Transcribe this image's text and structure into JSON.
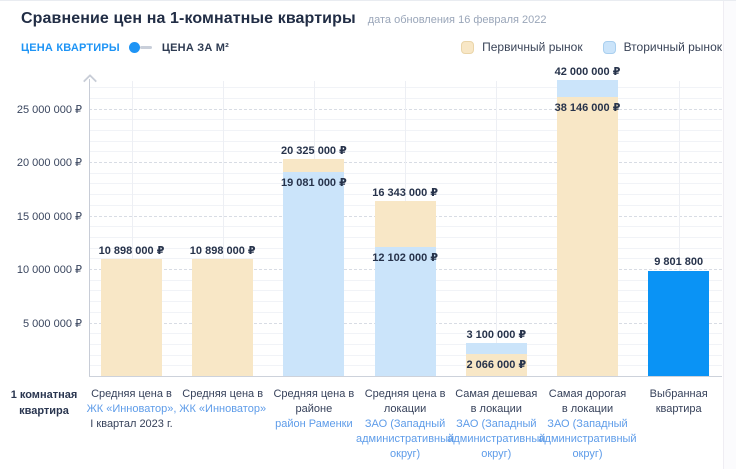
{
  "header": {
    "title": "Сравнение цен на 1-комнатные квартиры",
    "subtitle": "дата обновления 16 февраля 2022"
  },
  "controls": {
    "toggle_left_label": "ЦЕНА КВАРТИРЫ",
    "toggle_right_label": "ЦЕНА ЗА М²",
    "toggle_state": "left"
  },
  "legend": {
    "primary_label": "Первичный рынок",
    "secondary_label": "Вторичный рынок"
  },
  "colors": {
    "primary": "#F8E7C6",
    "secondary": "#CBE4FA",
    "selected": "#0A93F5",
    "accent_blue": "#1E94F5",
    "link_blue": "#5E9CE9",
    "text_dark": "#27334B"
  },
  "chart_data": {
    "type": "bar",
    "title": "Сравнение цен на 1-комнатные квартиры",
    "updated": "дата обновления 16 февраля 2022",
    "ylabel": "",
    "xlabel": "",
    "ylim": [
      0,
      27000000
    ],
    "grid": true,
    "legend_position": "top-right",
    "series_legend": [
      "Первичный рынок",
      "Вторичный рынок"
    ],
    "row_label": "1 комнатная квартира",
    "y_ticks": [
      {
        "value": 5000000,
        "label": "5 000 000 ₽"
      },
      {
        "value": 10000000,
        "label": "10 000 000 ₽"
      },
      {
        "value": 15000000,
        "label": "15 000 000 ₽"
      },
      {
        "value": 20000000,
        "label": "20 000 000 ₽"
      },
      {
        "value": 25000000,
        "label": "25 000 000 ₽"
      }
    ],
    "bars": [
      {
        "category": [
          {
            "text": "Средняя цена в",
            "link": false
          },
          {
            "text": "ЖК «Инноватор»,",
            "link": true
          },
          {
            "text": "I квартал 2023 г.",
            "link": false
          }
        ],
        "primary": 10898000,
        "primary_label": "10 898 000 ₽",
        "secondary": null,
        "secondary_label": null,
        "selected": null,
        "selected_label": null
      },
      {
        "category": [
          {
            "text": "Средняя цена в",
            "link": false
          },
          {
            "text": "ЖК «Инноватор»",
            "link": true
          }
        ],
        "primary": 10898000,
        "primary_label": "10 898 000 ₽",
        "secondary": null,
        "secondary_label": null,
        "selected": null,
        "selected_label": null
      },
      {
        "category": [
          {
            "text": "Средняя цена в",
            "link": false
          },
          {
            "text": "районе",
            "link": false
          },
          {
            "text": "район Раменки",
            "link": true
          }
        ],
        "primary": 20325000,
        "primary_label": "20 325 000 ₽",
        "secondary": 19081000,
        "secondary_label": "19 081 000 ₽",
        "selected": null,
        "selected_label": null
      },
      {
        "category": [
          {
            "text": "Средняя цена в",
            "link": false
          },
          {
            "text": "локации",
            "link": false
          },
          {
            "text": "ЗАО (Западный",
            "link": true
          },
          {
            "text": "административный",
            "link": true
          },
          {
            "text": "округ)",
            "link": true
          }
        ],
        "primary": 16343000,
        "primary_label": "16 343 000 ₽",
        "secondary": 12102000,
        "secondary_label": "12 102 000 ₽",
        "selected": null,
        "selected_label": null
      },
      {
        "category": [
          {
            "text": "Самая дешевая",
            "link": false
          },
          {
            "text": "в локации",
            "link": false
          },
          {
            "text": "ЗАО (Западный",
            "link": true
          },
          {
            "text": "административный",
            "link": true
          },
          {
            "text": "округ)",
            "link": true
          }
        ],
        "primary": 2066000,
        "primary_label": "2 066 000 ₽",
        "secondary": 3100000,
        "secondary_label": "3 100 000 ₽",
        "selected": null,
        "selected_label": null
      },
      {
        "category": [
          {
            "text": "Самая дорогая",
            "link": false
          },
          {
            "text": "в локации",
            "link": false
          },
          {
            "text": "ЗАО (Западный",
            "link": true
          },
          {
            "text": "административный",
            "link": true
          },
          {
            "text": "округ)",
            "link": true
          }
        ],
        "primary": 38146000,
        "primary_label": "38 146 000 ₽",
        "secondary": 42000000,
        "secondary_label": "42 000 000 ₽",
        "selected": null,
        "selected_label": null
      },
      {
        "category": [
          {
            "text": "Выбранная",
            "link": false
          },
          {
            "text": "квартира",
            "link": false
          }
        ],
        "primary": null,
        "primary_label": null,
        "secondary": null,
        "secondary_label": null,
        "selected": 9801800,
        "selected_label": "9 801 800"
      }
    ]
  }
}
